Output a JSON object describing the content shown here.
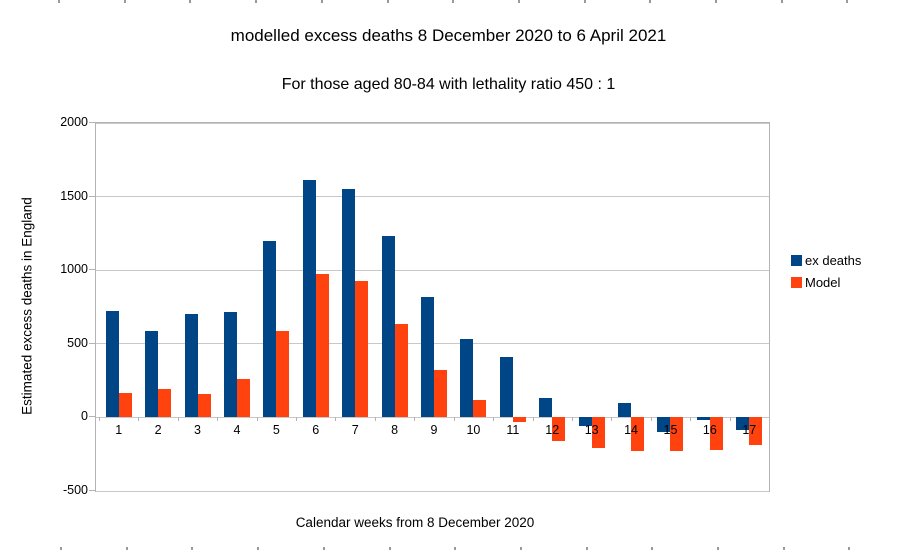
{
  "page": {
    "background": "#ffffff"
  },
  "chart_data": {
    "type": "bar",
    "title": "modelled excess deaths 8 December 2020 to 6 April 2021",
    "subtitle": "For those aged 80-84 with lethality ratio 450 : 1",
    "xlabel": "Calendar weeks from 8 December 2020",
    "ylabel": "Estimated excess deaths in England",
    "categories": [
      "1",
      "2",
      "3",
      "4",
      "5",
      "6",
      "7",
      "8",
      "9",
      "10",
      "11",
      "12",
      "13",
      "14",
      "15",
      "16",
      "17"
    ],
    "series": [
      {
        "name": "ex deaths",
        "color": "#004586",
        "values": [
          720,
          590,
          705,
          715,
          1195,
          1615,
          1550,
          1230,
          815,
          535,
          410,
          130,
          -60,
          100,
          -100,
          -15,
          -85
        ]
      },
      {
        "name": "Model",
        "color": "#FF420E",
        "values": [
          165,
          195,
          160,
          260,
          590,
          975,
          930,
          635,
          320,
          115,
          -30,
          -160,
          -205,
          -225,
          -230,
          -220,
          -190
        ]
      }
    ],
    "ylim": [
      -500,
      2000
    ],
    "yticks": [
      2000,
      1500,
      1000,
      500,
      0,
      -500
    ],
    "grid": true,
    "legend_position": "right",
    "gridline_color": "#c8c8c8",
    "axis_color": "#b3b3b3"
  }
}
